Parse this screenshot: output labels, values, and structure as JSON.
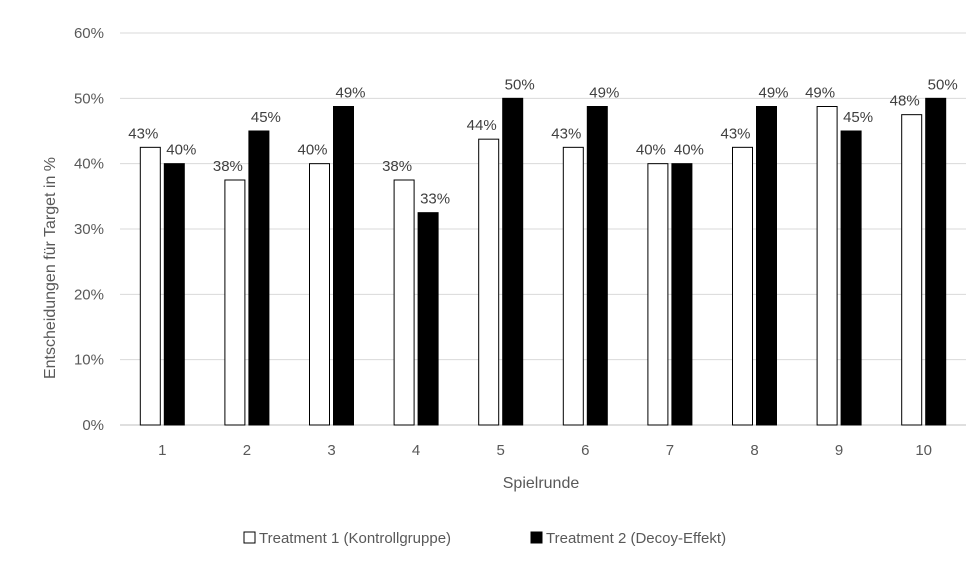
{
  "chart_data": {
    "type": "bar",
    "title": "",
    "xlabel": "Spielrunde",
    "ylabel": "Entscheidungen für Target in %",
    "categories": [
      "1",
      "2",
      "3",
      "4",
      "5",
      "6",
      "7",
      "8",
      "9",
      "10"
    ],
    "y_ticks": [
      "0%",
      "10%",
      "20%",
      "30%",
      "40%",
      "50%",
      "60%"
    ],
    "ylim": [
      0,
      60
    ],
    "grid": true,
    "legend_position": "bottom",
    "series": [
      {
        "name": "Treatment 1 (Kontrollgruppe)",
        "color": "#ffffff",
        "values": [
          42.5,
          37.5,
          40,
          37.5,
          43.75,
          42.5,
          40,
          42.5,
          48.75,
          47.5
        ],
        "labels": [
          "43%",
          "38%",
          "40%",
          "38%",
          "44%",
          "43%",
          "40%",
          "43%",
          "49%",
          "48%"
        ]
      },
      {
        "name": "Treatment 2 (Decoy-Effekt)",
        "color": "#000000",
        "values": [
          40,
          45,
          48.75,
          32.5,
          50,
          48.75,
          40,
          48.75,
          45,
          50
        ],
        "labels": [
          "40%",
          "45%",
          "49%",
          "33%",
          "50%",
          "49%",
          "40%",
          "49%",
          "45%",
          "50%"
        ]
      }
    ]
  }
}
